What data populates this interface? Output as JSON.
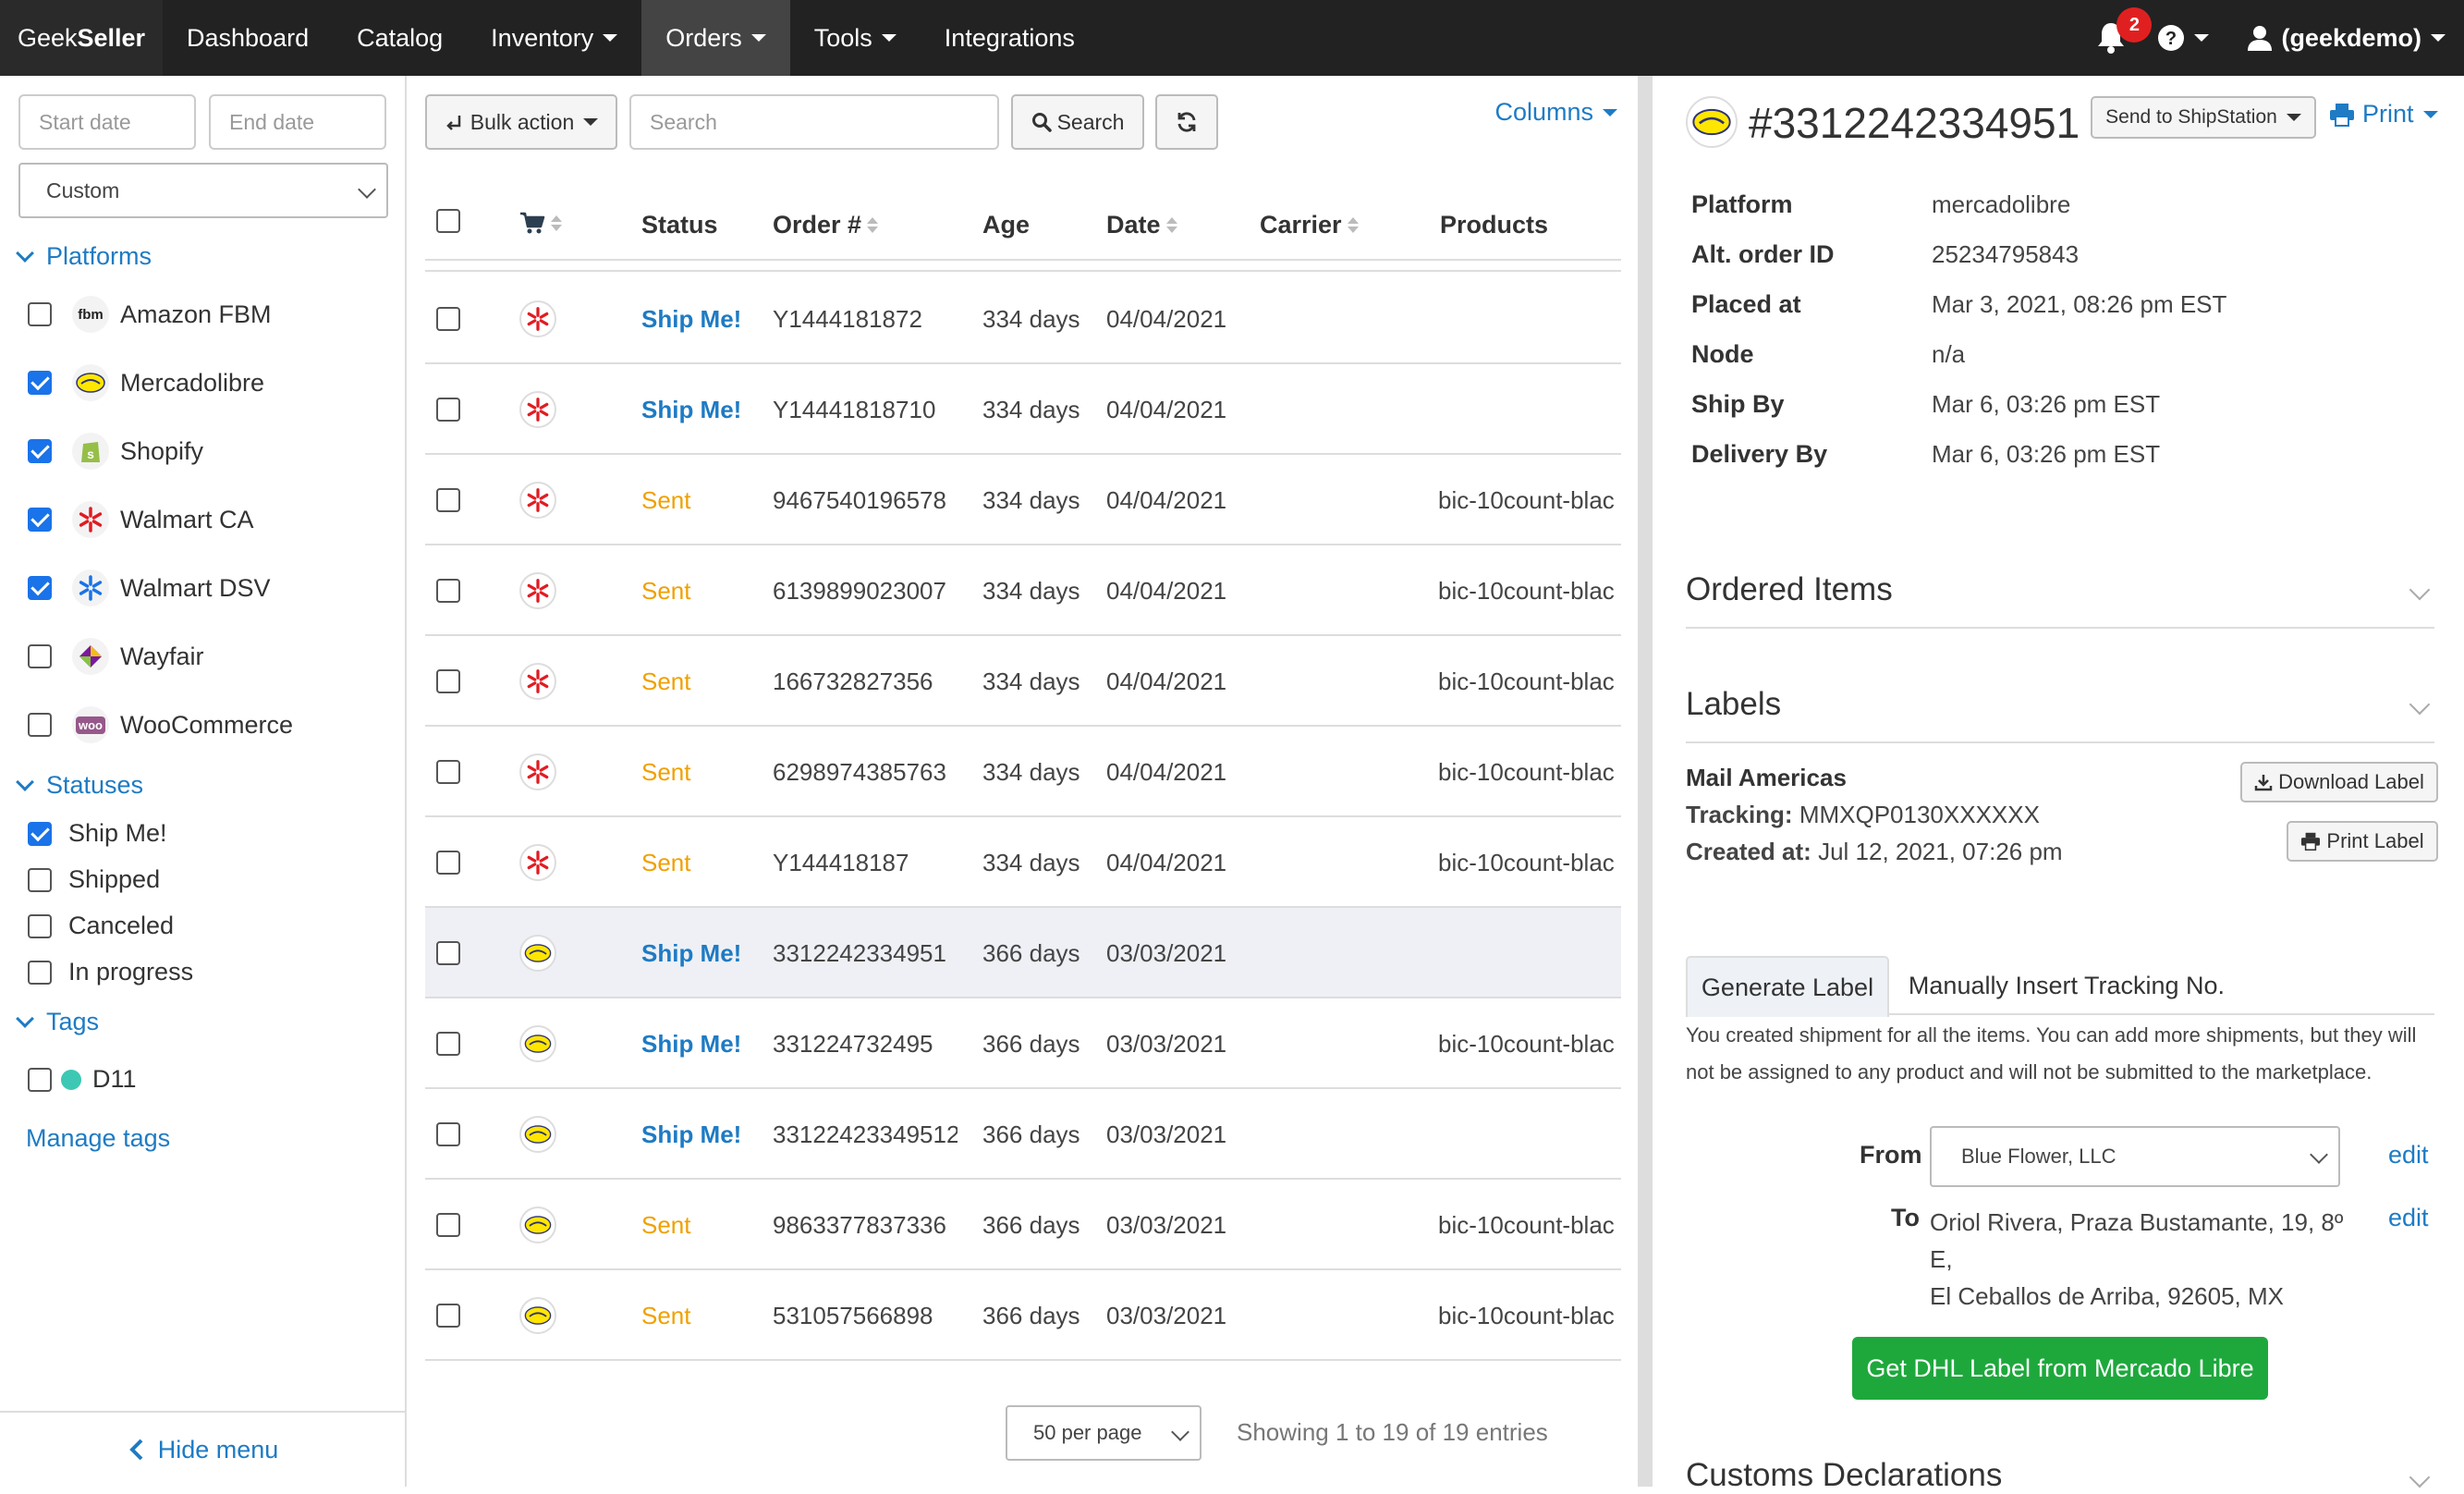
{
  "nav": {
    "brand_pre": "Geek",
    "brand_bold": "Seller",
    "items": [
      "Dashboard",
      "Catalog",
      "Inventory",
      "Orders",
      "Tools",
      "Integrations"
    ],
    "notif_count": "2",
    "user": "(geekdemo)"
  },
  "sidebar": {
    "start_date_placeholder": "Start date",
    "end_date_placeholder": "End date",
    "range": "Custom",
    "platforms_title": "Platforms",
    "platforms": [
      {
        "label": "Amazon FBM",
        "checked": false,
        "icon": "amazon-fbm-icon"
      },
      {
        "label": "Mercadolibre",
        "checked": true,
        "icon": "mercadolibre-icon"
      },
      {
        "label": "Shopify",
        "checked": true,
        "icon": "shopify-icon"
      },
      {
        "label": "Walmart CA",
        "checked": true,
        "icon": "walmart-icon"
      },
      {
        "label": "Walmart DSV",
        "checked": true,
        "icon": "walmart-dsv-icon"
      },
      {
        "label": "Wayfair",
        "checked": false,
        "icon": "wayfair-icon"
      },
      {
        "label": "WooCommerce",
        "checked": false,
        "icon": "woocommerce-icon"
      }
    ],
    "statuses_title": "Statuses",
    "statuses": [
      {
        "label": "Ship Me!",
        "checked": true
      },
      {
        "label": "Shipped",
        "checked": false
      },
      {
        "label": "Canceled",
        "checked": false
      },
      {
        "label": "In progress",
        "checked": false
      }
    ],
    "tags_title": "Tags",
    "tags": [
      {
        "label": "D11",
        "checked": false,
        "color": "#3cc8b4"
      }
    ],
    "manage_tags": "Manage tags",
    "hide_menu": "Hide menu"
  },
  "toolbar": {
    "bulk_action": "Bulk action",
    "search_placeholder": "Search",
    "search_button": "Search",
    "columns": "Columns"
  },
  "table": {
    "headers": {
      "status": "Status",
      "order": "Order #",
      "age": "Age",
      "date": "Date",
      "carrier": "Carrier",
      "products": "Products"
    },
    "rows": [
      {
        "channel": "walmart",
        "status": "Ship Me!",
        "status_type": "ship",
        "order": "Y1444181872",
        "age": "334 days",
        "date": "04/04/2021",
        "carrier": "",
        "products": ""
      },
      {
        "channel": "walmart",
        "status": "Ship Me!",
        "status_type": "ship",
        "order": "Y14441818710",
        "age": "334 days",
        "date": "04/04/2021",
        "carrier": "",
        "products": ""
      },
      {
        "channel": "walmart",
        "status": "Sent",
        "status_type": "sent",
        "order": "9467540196578",
        "age": "334 days",
        "date": "04/04/2021",
        "carrier": "",
        "products": "bic-10count-blac"
      },
      {
        "channel": "walmart",
        "status": "Sent",
        "status_type": "sent",
        "order": "6139899023007",
        "age": "334 days",
        "date": "04/04/2021",
        "carrier": "",
        "products": "bic-10count-blac"
      },
      {
        "channel": "walmart",
        "status": "Sent",
        "status_type": "sent",
        "order": "166732827356",
        "age": "334 days",
        "date": "04/04/2021",
        "carrier": "",
        "products": "bic-10count-blac"
      },
      {
        "channel": "walmart",
        "status": "Sent",
        "status_type": "sent",
        "order": "6298974385763",
        "age": "334 days",
        "date": "04/04/2021",
        "carrier": "",
        "products": "bic-10count-blac"
      },
      {
        "channel": "walmart",
        "status": "Sent",
        "status_type": "sent",
        "order": "Y144418187",
        "age": "334 days",
        "date": "04/04/2021",
        "carrier": "",
        "products": "bic-10count-blac"
      },
      {
        "channel": "mercadolibre",
        "status": "Ship Me!",
        "status_type": "ship",
        "order": "3312242334951",
        "age": "366 days",
        "date": "03/03/2021",
        "carrier": "",
        "products": "",
        "selected": true
      },
      {
        "channel": "mercadolibre",
        "status": "Ship Me!",
        "status_type": "ship",
        "order": "331224732495",
        "age": "366 days",
        "date": "03/03/2021",
        "carrier": "",
        "products": "bic-10count-blac"
      },
      {
        "channel": "mercadolibre",
        "status": "Ship Me!",
        "status_type": "ship",
        "order": "33122423349512",
        "age": "366 days",
        "date": "03/03/2021",
        "carrier": "",
        "products": ""
      },
      {
        "channel": "mercadolibre",
        "status": "Sent",
        "status_type": "sent",
        "order": "9863377837336",
        "age": "366 days",
        "date": "03/03/2021",
        "carrier": "",
        "products": "bic-10count-blac"
      },
      {
        "channel": "mercadolibre",
        "status": "Sent",
        "status_type": "sent",
        "order": "531057566898",
        "age": "366 days",
        "date": "03/03/2021",
        "carrier": "",
        "products": "bic-10count-blac"
      }
    ]
  },
  "pager": {
    "per_page": "50 per page",
    "showing": "Showing 1 to 19 of 19 entries"
  },
  "detail": {
    "order_number": "#3312242334951",
    "send_to": "Send to ShipStation",
    "print": "Print",
    "fields": [
      {
        "label": "Platform",
        "value": "mercadolibre"
      },
      {
        "label": "Alt. order ID",
        "value": "25234795843"
      },
      {
        "label": "Placed at",
        "value": "Mar 3, 2021, 08:26 pm EST"
      },
      {
        "label": "Node",
        "value": "n/a"
      },
      {
        "label": "Ship By",
        "value": "Mar 6, 03:26 pm EST"
      },
      {
        "label": "Delivery By",
        "value": "Mar 6, 03:26 pm EST"
      }
    ],
    "ordered_items_title": "Ordered Items",
    "labels_title": "Labels",
    "label": {
      "carrier": "Mail Americas",
      "tracking_label": "Tracking:",
      "tracking": "MMXQP0130XXXXXX",
      "created_label": "Created at:",
      "created": "Jul 12, 2021, 07:26 pm",
      "download": "Download Label",
      "print": "Print Label"
    },
    "tabs": [
      "Generate Label",
      "Manually Insert Tracking No."
    ],
    "note": "You created shipment for all the items. You can add more shipments, but they will not be assigned to any product and will not be submitted to the marketplace.",
    "from_label": "From",
    "from_value": "Blue Flower, LLC",
    "to_label": "To",
    "to_line1": "Oriol Rivera, Praza Bustamante, 19, 8º",
    "to_line2": "E,",
    "to_line3": "El Ceballos de Arriba, 92605, MX",
    "edit": "edit",
    "dhl_button": "Get DHL Label from Mercado Libre",
    "customs_title": "Customs Declarations"
  },
  "colors": {
    "accent": "#1e7bc4",
    "ship_status": "#1e7bc4",
    "sent_status": "#f0a000",
    "primary_action": "#1ea83c",
    "navbar": "#222222"
  }
}
